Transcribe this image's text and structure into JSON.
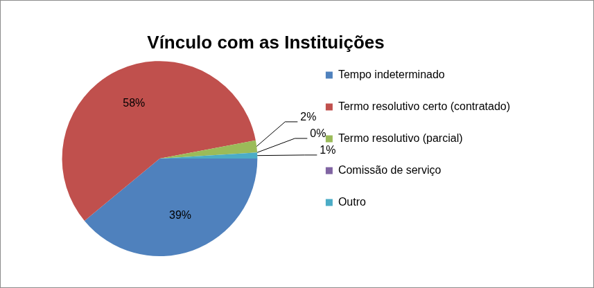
{
  "chart_data": {
    "type": "pie",
    "title": "Vínculo com as Instituições",
    "categories": [
      "Tempo indeterminado",
      "Termo resolutivo certo (contratado)",
      "Termo resolutivo (parcial)",
      "Comissão de serviço",
      "Outro"
    ],
    "values": [
      39,
      58,
      2,
      0,
      1
    ],
    "value_labels": [
      "39%",
      "58%",
      "2%",
      "0%",
      "1%"
    ],
    "colors": [
      "#4f81bd",
      "#c0504d",
      "#9bbb59",
      "#8064a2",
      "#4bacc6"
    ],
    "legend": "right",
    "data_labels": true
  }
}
